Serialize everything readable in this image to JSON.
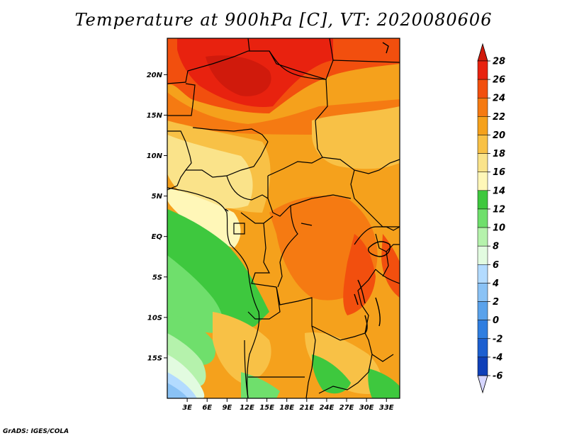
{
  "title": "Temperature at 900hPa [C], VT: 2020080606",
  "footer": "GrADS: IGES/COLA",
  "map": {
    "lat_labels": [
      "20N",
      "15N",
      "10N",
      "5N",
      "EQ",
      "5S",
      "10S",
      "15S"
    ],
    "lon_labels": [
      "3E",
      "6E",
      "9E",
      "12E",
      "15E",
      "18E",
      "21E",
      "24E",
      "27E",
      "30E",
      "33E"
    ],
    "lat_range": [
      -20,
      24.5
    ],
    "lon_range": [
      0,
      35
    ]
  },
  "colorbar": {
    "levels": [
      "28",
      "26",
      "24",
      "22",
      "20",
      "18",
      "16",
      "14",
      "12",
      "10",
      "8",
      "6",
      "4",
      "2",
      "0",
      "-2",
      "-4",
      "-6"
    ],
    "colors": [
      "#e8220f",
      "#f24f0e",
      "#f57a12",
      "#f5a11c",
      "#f8c146",
      "#fae38a",
      "#fff7b8",
      "#3ec83e",
      "#6fdf6c",
      "#b5f2ac",
      "#e2fbe0",
      "#b3dbff",
      "#8ac2f5",
      "#5aa2eb",
      "#2f7ee0",
      "#1c5fd0",
      "#0f40b8",
      "#0a2890",
      "#0a1570"
    ],
    "top_color": "#d01a0c",
    "bottom_color": "#d6d6ff"
  }
}
